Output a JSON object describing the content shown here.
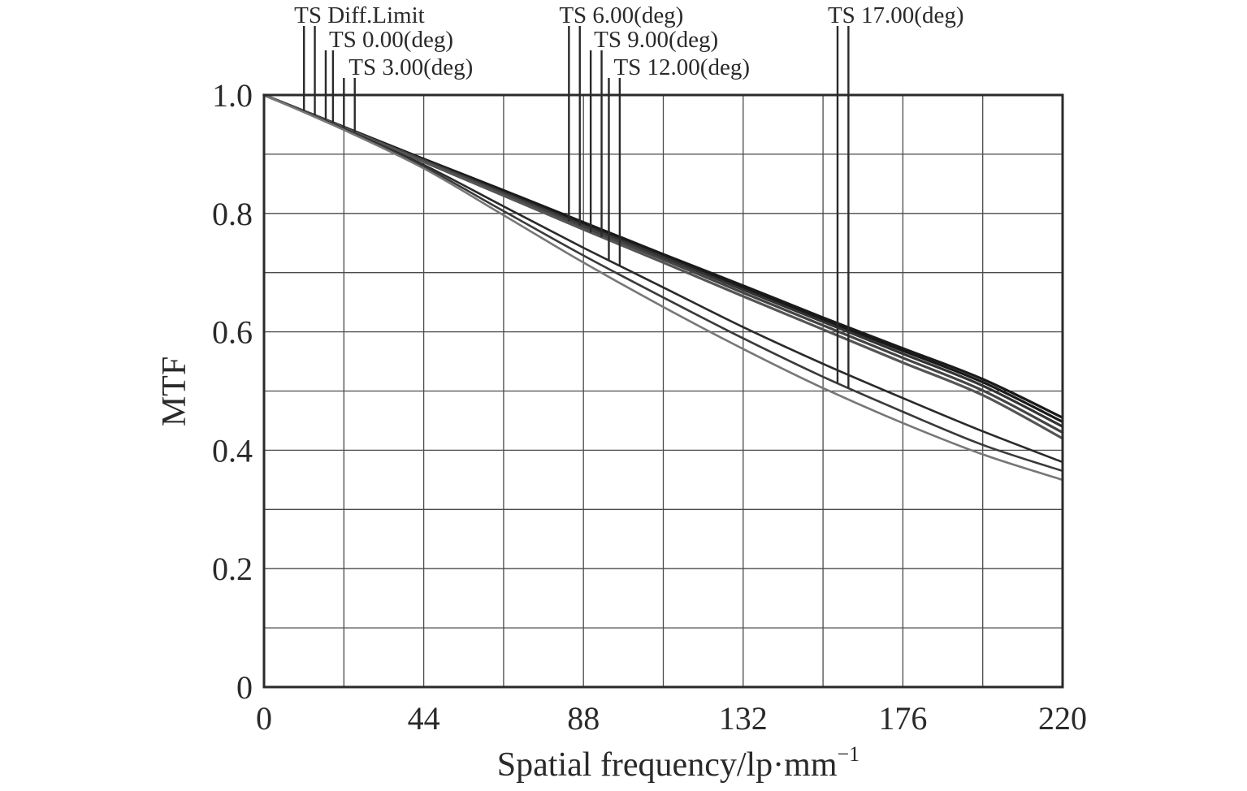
{
  "chart_data": {
    "type": "line",
    "title": "",
    "xlabel": "Spatial frequency/lp·mm",
    "xlabel_superscript": "−1",
    "ylabel": "MTF",
    "xlim": [
      0,
      220
    ],
    "ylim": [
      0,
      1.0
    ],
    "x_ticks": [
      "0",
      "44",
      "88",
      "132",
      "176",
      "220"
    ],
    "y_ticks": [
      "0",
      "0.2",
      "0.4",
      "0.6",
      "0.8",
      "1.0"
    ],
    "grid": true,
    "x_grid_step": 22,
    "y_grid_step": 0.1,
    "legend_placement": "top (leader-line labels above plot)",
    "legend": [
      {
        "label": "TS Diff.Limit",
        "marker_x": [
          11,
          14
        ]
      },
      {
        "label": "TS 0.00(deg)",
        "marker_x": [
          17,
          19
        ]
      },
      {
        "label": "TS 3.00(deg)",
        "marker_x": [
          22,
          25
        ]
      },
      {
        "label": "TS 6.00(deg)",
        "marker_x": [
          84,
          87
        ]
      },
      {
        "label": "TS 9.00(deg)",
        "marker_x": [
          90,
          93
        ]
      },
      {
        "label": "TS 12.00(deg)",
        "marker_x": [
          95,
          98
        ]
      },
      {
        "label": "TS 17.00(deg)",
        "marker_x": [
          158,
          161
        ]
      }
    ],
    "x": [
      0,
      22,
      44,
      66,
      88,
      110,
      132,
      154,
      176,
      198,
      220
    ],
    "series": [
      {
        "label_ref": "TS Diff.Limit",
        "color": "#1a1a1a",
        "values": [
          1.0,
          0.946,
          0.892,
          0.839,
          0.785,
          0.731,
          0.678,
          0.624,
          0.572,
          0.52,
          0.455
        ]
      },
      {
        "label_ref": "TS 0.00(deg)",
        "color": "#1a1a1a",
        "values": [
          1.0,
          0.946,
          0.891,
          0.837,
          0.783,
          0.729,
          0.675,
          0.621,
          0.568,
          0.515,
          0.448
        ]
      },
      {
        "label_ref": "TS 3.00(deg)",
        "color": "#333333",
        "values": [
          1.0,
          0.945,
          0.89,
          0.835,
          0.78,
          0.726,
          0.671,
          0.617,
          0.563,
          0.509,
          0.44
        ]
      },
      {
        "label_ref": "TS 6.00(deg)",
        "color": "#444444",
        "values": [
          1.0,
          0.945,
          0.889,
          0.833,
          0.777,
          0.722,
          0.666,
          0.611,
          0.556,
          0.501,
          0.43
        ]
      },
      {
        "label_ref": "TS 9.00(deg)",
        "color": "#555555",
        "values": [
          1.0,
          0.944,
          0.887,
          0.83,
          0.773,
          0.717,
          0.66,
          0.604,
          0.548,
          0.493,
          0.42
        ]
      },
      {
        "label_ref": "TS 12.00(deg)",
        "color": "#2a2a2a",
        "values": [
          1.0,
          0.943,
          0.882,
          0.812,
          0.742,
          0.675,
          0.608,
          0.546,
          0.488,
          0.432,
          0.38
        ]
      },
      {
        "label_ref": "TS 17.00(deg)",
        "color": "#3a3a3a",
        "values": [
          1.0,
          0.942,
          0.879,
          0.804,
          0.729,
          0.658,
          0.589,
          0.524,
          0.465,
          0.409,
          0.365
        ]
      },
      {
        "label_ref": "TS 17.00(deg)",
        "color": "#777777",
        "values": [
          1.0,
          0.941,
          0.876,
          0.797,
          0.717,
          0.642,
          0.571,
          0.505,
          0.446,
          0.393,
          0.35
        ]
      }
    ]
  }
}
